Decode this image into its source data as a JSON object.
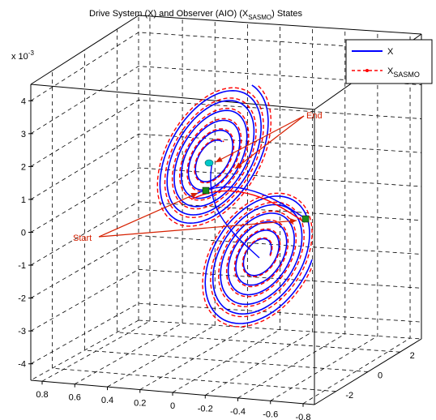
{
  "chart_data": {
    "type": "line3d",
    "title": "Drive System (X) and Observer (AIO) (X",
    "title_sub": "SASMO",
    "title_end": ") States",
    "z_exponent_base": "x 10",
    "z_exponent_power": "-3",
    "x_ticks": [
      "0.8",
      "0.6",
      "0.4",
      "0.2",
      "0",
      "-0.2",
      "-0.4",
      "-0.6",
      "-0.8"
    ],
    "y_ticks": [
      "2",
      "0",
      "-2"
    ],
    "z_ticks": [
      "4",
      "3",
      "2",
      "1",
      "0",
      "-1",
      "-2",
      "-3",
      "-4"
    ],
    "xlim": [
      -0.8,
      0.8
    ],
    "ylim": [
      -3,
      3
    ],
    "zlim": [
      -4.5,
      4.5
    ],
    "grid": true,
    "legend_position": "top-right",
    "legend": [
      {
        "label": "X",
        "sub": "",
        "color": "#0000ff",
        "style": "solid"
      },
      {
        "label": "X",
        "sub": "SASMO",
        "color": "#ff0000",
        "style": "dashed-dot"
      }
    ],
    "annotations": {
      "start": "Start",
      "end": "End"
    },
    "series_colors": {
      "drive": "#0000ff",
      "observer": "#ff0000",
      "arrow": "#d62000",
      "marker_start": "#1a8a1a",
      "marker_end": "#00c8c8"
    }
  }
}
